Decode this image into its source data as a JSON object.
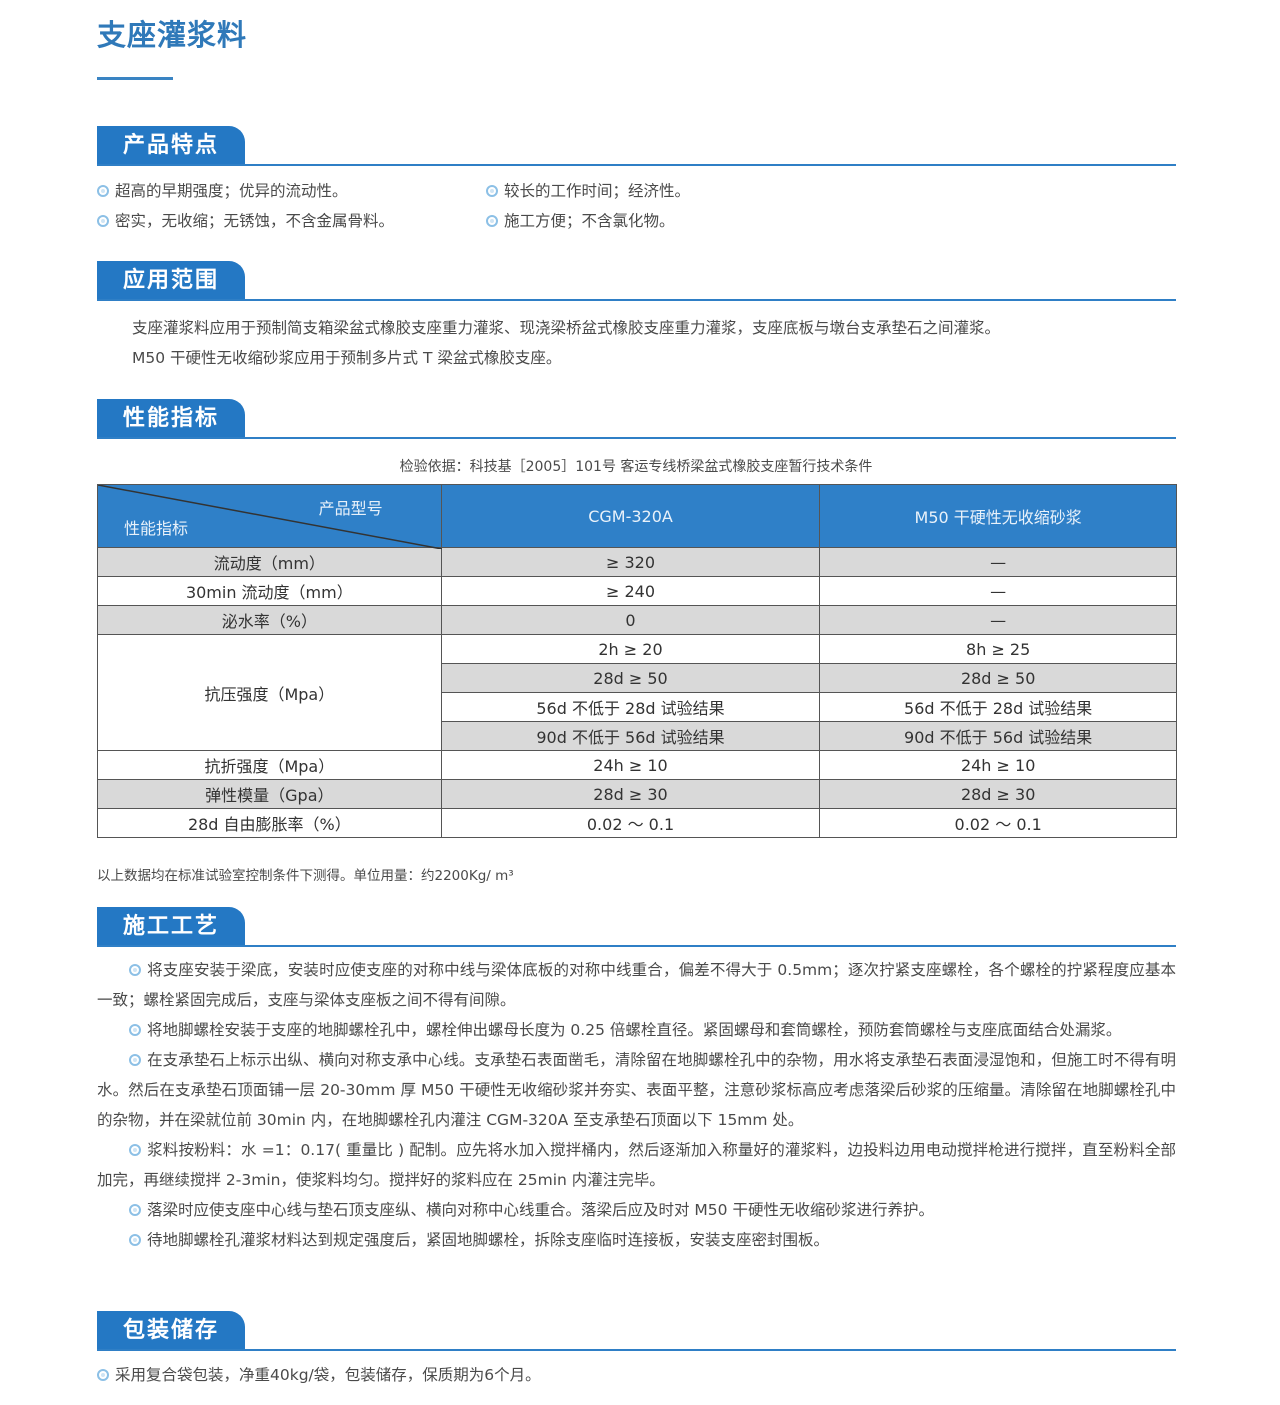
{
  "title": "支座灌浆料",
  "sections": {
    "features": {
      "heading": "产品特点",
      "items": [
        "超高的早期强度；优异的流动性。",
        "较长的工作时间；经济性。",
        "密实，无收缩；无锈蚀，不含金属骨料。",
        "施工方便；不含氯化物。"
      ]
    },
    "scope": {
      "heading": "应用范围",
      "lines": [
        "支座灌浆料应用于预制简支箱梁盆式橡胶支座重力灌浆、现浇梁桥盆式橡胶支座重力灌浆，支座底板与墩台支承垫石之间灌浆。",
        "M50 干硬性无收缩砂浆应用于预制多片式 T 梁盆式橡胶支座。"
      ]
    },
    "performance": {
      "heading": "性能指标",
      "basis": "检验依据：科技基［2005］101号 客运专线桥梁盆式橡胶支座暂行技术条件",
      "table": {
        "corner_top": "产品型号",
        "corner_bottom": "性能指标",
        "col1": "CGM-320A",
        "col2": "M50 干硬性无收缩砂浆",
        "rows": [
          [
            "流动度（mm）",
            "≥ 320",
            "—"
          ],
          [
            "30min 流动度（mm）",
            "≥ 240",
            "—"
          ],
          [
            "泌水率（%）",
            "0",
            "—"
          ]
        ],
        "compressive": {
          "label": "抗压强度（Mpa）",
          "rows": [
            [
              "2h ≥ 20",
              "8h ≥ 25"
            ],
            [
              "28d ≥ 50",
              "28d ≥ 50"
            ],
            [
              "56d 不低于 28d 试验结果",
              "56d 不低于 28d 试验结果"
            ],
            [
              "90d 不低于 56d 试验结果",
              "90d 不低于 56d 试验结果"
            ]
          ]
        },
        "rows2": [
          [
            "抗折强度（Mpa）",
            "24h ≥ 10",
            "24h ≥ 10"
          ],
          [
            "弹性模量（Gpa）",
            "28d ≥ 30",
            "28d ≥ 30"
          ],
          [
            "28d 自由膨胀率（%）",
            "0.02 ～ 0.1",
            "0.02 ～ 0.1"
          ]
        ]
      },
      "note": "以上数据均在标准试验室控制条件下测得。单位用量：约2200Kg/ m³"
    },
    "process": {
      "heading": "施工工艺",
      "items": [
        "将支座安装于梁底，安装时应使支座的对称中线与梁体底板的对称中线重合，偏差不得大于 0.5mm；逐次拧紧支座螺栓，各个螺栓的拧紧程度应基本一致；螺栓紧固完成后，支座与梁体支座板之间不得有间隙。",
        "将地脚螺栓安装于支座的地脚螺栓孔中，螺栓伸出螺母长度为 0.25 倍螺栓直径。紧固螺母和套筒螺栓，预防套筒螺栓与支座底面结合处漏浆。",
        "在支承垫石上标示出纵、横向对称支承中心线。支承垫石表面凿毛，清除留在地脚螺栓孔中的杂物，用水将支承垫石表面浸湿饱和，但施工时不得有明水。然后在支承垫石顶面铺一层 20-30mm 厚 M50 干硬性无收缩砂浆并夯实、表面平整，注意砂浆标高应考虑落梁后砂浆的压缩量。清除留在地脚螺栓孔中的杂物，并在梁就位前 30min 内，在地脚螺栓孔内灌注 CGM-320A 至支承垫石顶面以下 15mm 处。",
        "浆料按粉料：水 =1：0.17( 重量比 ) 配制。应先将水加入搅拌桶内，然后逐渐加入称量好的灌浆料，边投料边用电动搅拌枪进行搅拌，直至粉料全部加完，再继续搅拌 2-3min，使浆料均匀。搅拌好的浆料应在 25min 内灌注完毕。",
        "落梁时应使支座中心线与垫石顶支座纵、横向对称中心线重合。落梁后应及时对 M50 干硬性无收缩砂浆进行养护。",
        "待地脚螺栓孔灌浆材料达到规定强度后，紧固地脚螺栓，拆除支座临时连接板，安装支座密封围板。"
      ]
    },
    "packaging": {
      "heading": "包装储存",
      "item": "采用复合袋包装，净重40kg/袋，包装储存，保质期为6个月。"
    }
  },
  "colors": {
    "accent": "#2478c4",
    "header_fill": "#2f80c8",
    "row_gray": "#d9d9d9"
  }
}
